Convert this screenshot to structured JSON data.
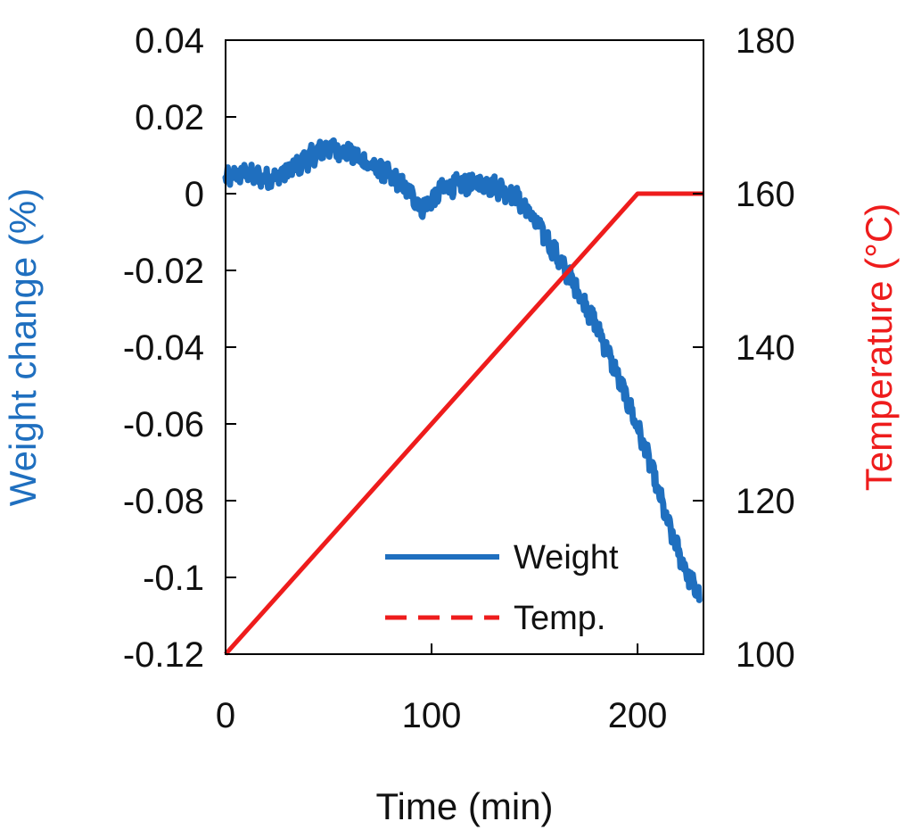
{
  "chart_data": {
    "type": "line",
    "xlabel": "Time (min)",
    "ylabel_left": "Weight change (%)",
    "ylabel_right": "Temperature (°C)",
    "xlim": [
      0,
      232
    ],
    "ylim_left": [
      -0.12,
      0.04
    ],
    "ylim_right": [
      100,
      180
    ],
    "x_ticks": [
      0,
      100,
      200
    ],
    "x_tick_labels": [
      "0",
      "100",
      "200"
    ],
    "y_left_ticks": [
      0.04,
      0.02,
      0,
      -0.02,
      -0.04,
      -0.06,
      -0.08,
      -0.1,
      -0.12
    ],
    "y_left_tick_labels": [
      "0.04",
      "0.02",
      "0",
      "-0.02",
      "-0.04",
      "-0.06",
      "-0.08",
      "-0.1",
      "-0.12"
    ],
    "y_right_ticks": [
      180,
      160,
      140,
      120,
      100
    ],
    "y_right_tick_labels": [
      "180",
      "160",
      "140",
      "120",
      "100"
    ],
    "grid": false,
    "legend_position": "bottom-right",
    "series": [
      {
        "name": "Weight",
        "axis": "left",
        "color": "#1f6fbf",
        "style": "solid",
        "x": [
          0,
          5,
          10,
          15,
          20,
          25,
          30,
          35,
          40,
          45,
          50,
          55,
          60,
          65,
          70,
          75,
          80,
          85,
          90,
          95,
          100,
          105,
          110,
          115,
          120,
          125,
          130,
          135,
          140,
          145,
          150,
          155,
          160,
          165,
          170,
          175,
          180,
          185,
          190,
          195,
          200,
          205,
          210,
          215,
          220,
          225,
          230
        ],
        "y": [
          0.0035,
          0.005,
          0.0055,
          0.0045,
          0.004,
          0.0045,
          0.006,
          0.0075,
          0.009,
          0.011,
          0.012,
          0.0115,
          0.0105,
          0.009,
          0.0075,
          0.006,
          0.0045,
          0.0025,
          0.0,
          -0.0035,
          -0.002,
          0.001,
          0.002,
          0.0025,
          0.0025,
          0.0025,
          0.002,
          0.001,
          -0.0005,
          -0.003,
          -0.007,
          -0.011,
          -0.0155,
          -0.02,
          -0.0245,
          -0.0295,
          -0.0345,
          -0.0405,
          -0.047,
          -0.054,
          -0.061,
          -0.0685,
          -0.0775,
          -0.0865,
          -0.0935,
          -0.1,
          -0.105
        ]
      },
      {
        "name": "Temp.",
        "axis": "right",
        "color": "#ee1c1c",
        "style": "dashed",
        "x": [
          0,
          200,
          232
        ],
        "y": [
          100,
          160,
          160
        ]
      }
    ]
  }
}
